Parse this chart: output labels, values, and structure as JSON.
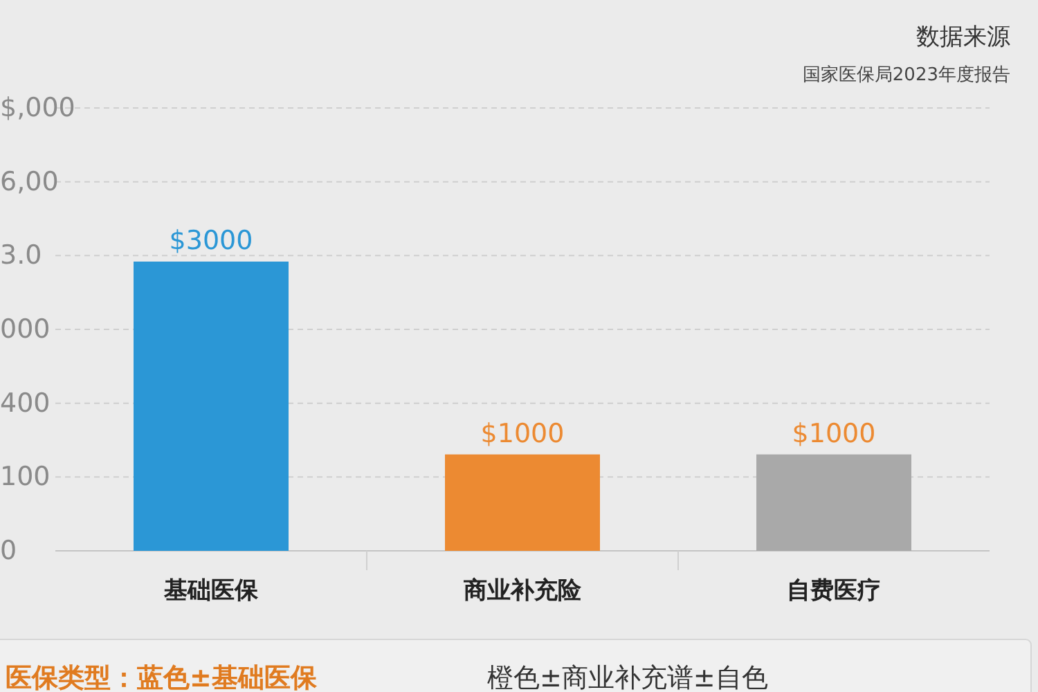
{
  "chart_data": {
    "type": "bar",
    "title": "数据来源",
    "subtitle": "国家医保局2023年度报告",
    "categories": [
      "基础医保",
      "商业补充险",
      "自费医疗"
    ],
    "values": [
      3000,
      1000,
      1000
    ],
    "value_labels": [
      "$3000",
      "$1000",
      "$1000"
    ],
    "colors": [
      "#2b97d6",
      "#ec8a32",
      "#a9a9a9"
    ],
    "annotations": [
      "$,000",
      "6,00",
      "3.0",
      "000",
      "400",
      "100",
      "0",
      "医保类型：蓝色±基础医保",
      "橙色±商业补充谱±自色"
    ]
  }
}
